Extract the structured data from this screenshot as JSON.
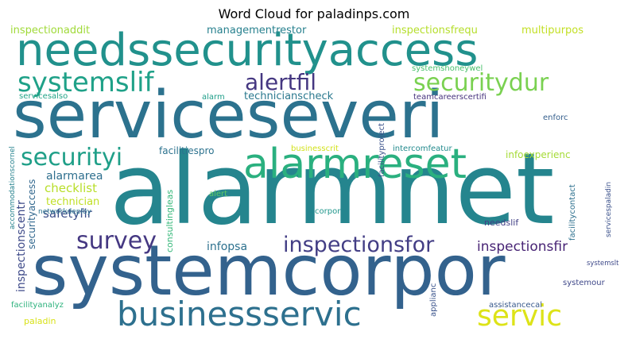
{
  "title": "Word Cloud for paladinps.com",
  "words": [
    {
      "text": "needssecurityaccess",
      "color": "#21918c"
    },
    {
      "text": "serviceseveri",
      "color": "#2c728e"
    },
    {
      "text": "alarmnet",
      "color": "#25858e"
    },
    {
      "text": "systemcorpor",
      "color": "#33628d"
    },
    {
      "text": "alarmreset",
      "color": "#2ab07f"
    },
    {
      "text": "businessservic",
      "color": "#2d708e"
    },
    {
      "text": "systemslif",
      "color": "#1fa188"
    },
    {
      "text": "alertfil",
      "color": "#453781"
    },
    {
      "text": "securitydur",
      "color": "#7ad151"
    },
    {
      "text": "securityi",
      "color": "#1f9f88"
    },
    {
      "text": "survey",
      "color": "#453882"
    },
    {
      "text": "inspectionsfor",
      "color": "#433e85"
    },
    {
      "text": "servic",
      "color": "#dde318"
    },
    {
      "text": "systemslt",
      "color": "#3e4989"
    },
    {
      "text": "inspectionsfir",
      "color": "#482475"
    },
    {
      "text": "inspectionaddit",
      "color": "#a0da39"
    },
    {
      "text": "managementrestor",
      "color": "#27808e"
    },
    {
      "text": "inspectionsfrequ",
      "color": "#b5de2b"
    },
    {
      "text": "multipurpos",
      "color": "#c2df23"
    },
    {
      "text": "systemshoneywel",
      "color": "#4ac16d"
    },
    {
      "text": "servicesalso",
      "color": "#20a386"
    },
    {
      "text": "alarm",
      "color": "#1f9e89"
    },
    {
      "text": "technicianscheck",
      "color": "#2a788e"
    },
    {
      "text": "teamcareerscertifi",
      "color": "#46327e"
    },
    {
      "text": "facilityproject",
      "color": "#3b528b"
    },
    {
      "text": "enforc",
      "color": "#355f8d"
    },
    {
      "text": "facilitiespro",
      "color": "#2c728e"
    },
    {
      "text": "infoexperienc",
      "color": "#a5db36"
    },
    {
      "text": "businesscrit",
      "color": "#d2e21b"
    },
    {
      "text": "intercomfeatur",
      "color": "#238a8d"
    },
    {
      "text": "alarmarea",
      "color": "#2e6f8e"
    },
    {
      "text": "checklist",
      "color": "#b8de29"
    },
    {
      "text": "technician",
      "color": "#c0df25"
    },
    {
      "text": "safetyfir",
      "color": "#3c4f8a"
    },
    {
      "text": "alert",
      "color": "#5ec962"
    },
    {
      "text": "corpor",
      "color": "#1f968b"
    },
    {
      "text": "infopsa",
      "color": "#2d718e"
    },
    {
      "text": "needslif",
      "color": "#424086"
    },
    {
      "text": "accommodationscornel",
      "color": "#26828e"
    },
    {
      "text": "inspectionscentr",
      "color": "#3e4a89"
    },
    {
      "text": "securityaccess",
      "color": "#31678e"
    },
    {
      "text": "networkdeploy",
      "color": "#2c738e"
    },
    {
      "text": "consultingleas",
      "color": "#35b779"
    },
    {
      "text": "facilitycontact",
      "color": "#2d708e"
    },
    {
      "text": "servicespaladin",
      "color": "#3b518b"
    },
    {
      "text": "facilityanalyz",
      "color": "#2db27d"
    },
    {
      "text": "applianc",
      "color": "#3a538b"
    },
    {
      "text": "systemour",
      "color": "#3f4889"
    },
    {
      "text": "assistancecal",
      "color": "#38598c"
    },
    {
      "text": "paladin",
      "color": "#d8e219"
    }
  ]
}
